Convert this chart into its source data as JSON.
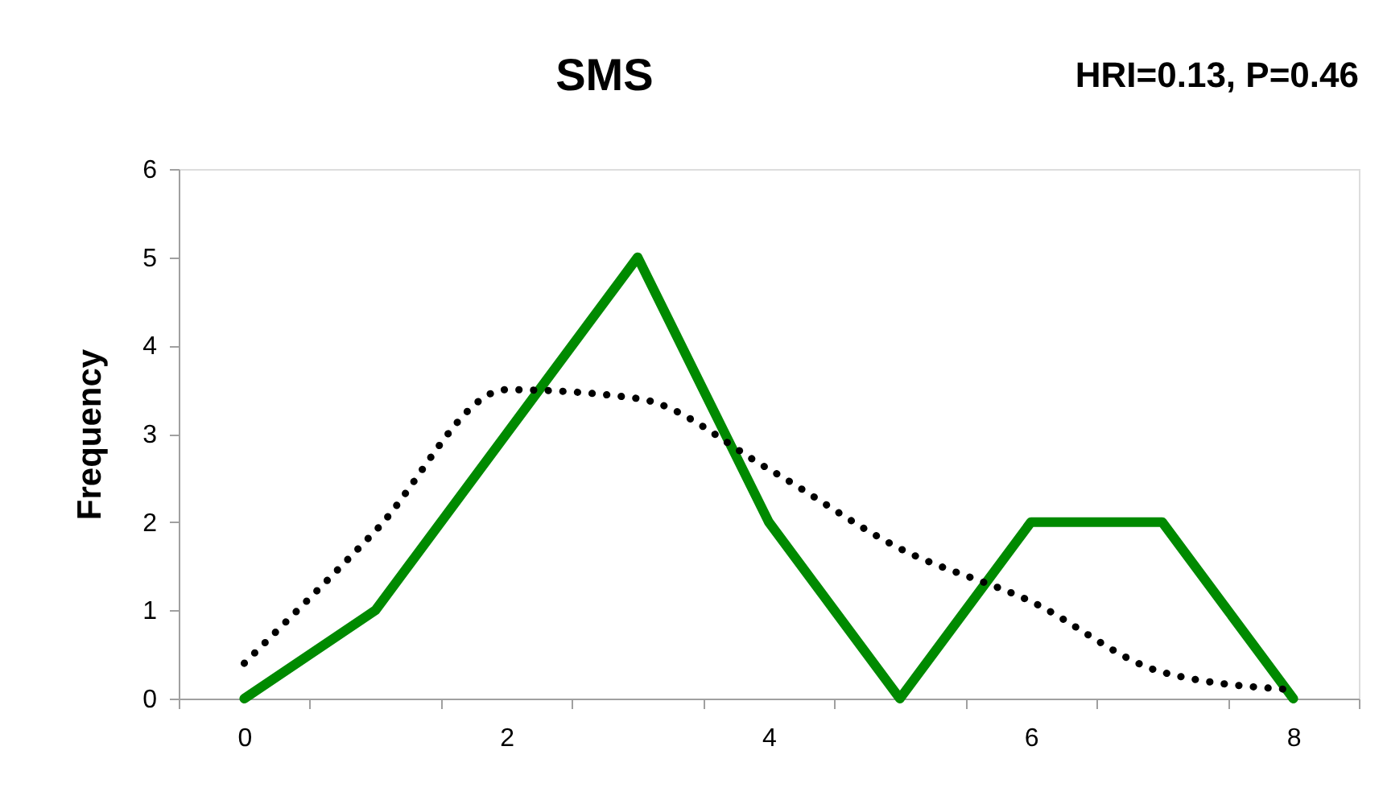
{
  "chart_data": {
    "type": "line",
    "title": "SMS",
    "ylabel": "Frequency",
    "annotations": [
      "HRI=0.13, P=0.46"
    ],
    "categories": [
      "0",
      null,
      "2",
      null,
      "4",
      null,
      "6",
      null,
      "8"
    ],
    "series": [
      {
        "color": "#008a00",
        "line_style": "solid",
        "values": [
          0,
          1,
          3,
          5,
          2,
          0,
          2,
          2,
          0
        ]
      },
      {
        "color": "#000000",
        "line_style": "dotted",
        "values": [
          0.4,
          1.9,
          3.5,
          3.4,
          2.6,
          1.7,
          1.1,
          0.3,
          0.1
        ]
      }
    ],
    "ylim": [
      0,
      6
    ],
    "yticks": [
      0,
      1,
      2,
      3,
      4,
      5,
      6
    ],
    "grid": false,
    "marker": "none"
  }
}
